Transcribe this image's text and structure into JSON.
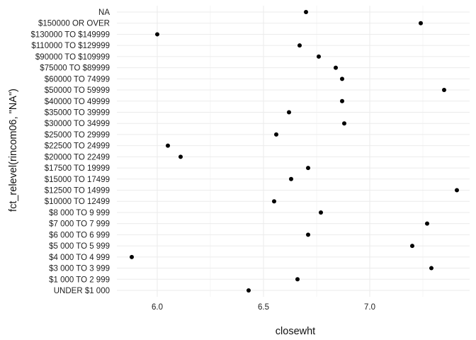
{
  "chart_data": {
    "type": "scatter",
    "xlabel": "closewht",
    "ylabel": "fct_relevel(rincom06, \"NA\")",
    "xlim": [
      5.81,
      7.47
    ],
    "xticks": [
      6.0,
      6.5,
      7.0
    ],
    "xtick_labels": [
      "6.0",
      "6.5",
      "7.0"
    ],
    "grid": true,
    "categories": [
      "UNDER $1 000",
      "$1 000 TO 2 999",
      "$3 000 TO 3 999",
      "$4 000 TO 4 999",
      "$5 000 TO 5 999",
      "$6 000 TO 6 999",
      "$7 000 TO 7 999",
      "$8 000 TO 9 999",
      "$10000 TO 12499",
      "$12500 TO 14999",
      "$15000 TO 17499",
      "$17500 TO 19999",
      "$20000 TO 22499",
      "$22500 TO 24999",
      "$25000 TO 29999",
      "$30000 TO 34999",
      "$35000 TO 39999",
      "$40000 TO 49999",
      "$50000 TO 59999",
      "$60000 TO 74999",
      "$75000 TO $89999",
      "$90000 TO $109999",
      "$110000 TO $129999",
      "$130000 TO $149999",
      "$150000 OR OVER",
      "NA"
    ],
    "values": [
      6.43,
      6.66,
      7.29,
      5.88,
      7.2,
      6.71,
      7.27,
      6.77,
      6.55,
      7.41,
      6.63,
      6.71,
      6.11,
      6.05,
      6.56,
      6.88,
      6.62,
      6.87,
      7.35,
      6.87,
      6.84,
      6.76,
      6.67,
      6.0,
      7.24,
      6.7
    ]
  }
}
